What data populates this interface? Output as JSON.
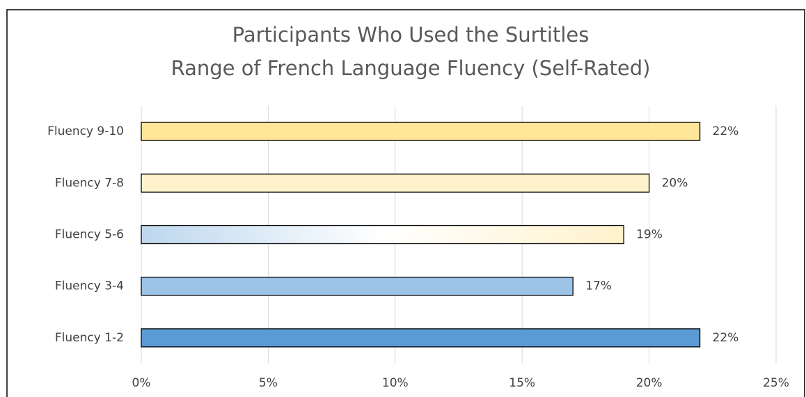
{
  "chart_data": {
    "type": "barh",
    "title": [
      "Participants Who Used the Surtitles",
      "Range of French Language Fluency (Self-Rated)"
    ],
    "categories": [
      "Fluency 9-10",
      "Fluency 7-8",
      "Fluency 5-6",
      "Fluency 3-4",
      "Fluency 1-2"
    ],
    "values": [
      22,
      20,
      19,
      17,
      22
    ],
    "value_labels": [
      "22%",
      "20%",
      "19%",
      "17%",
      "22%"
    ],
    "colors": [
      "#ffe699",
      "#fff2cc",
      [
        "#bdd7ee",
        "#ffffff",
        "#fff2cc"
      ],
      "#9dc3e6",
      "#5b9bd5"
    ],
    "xlim": [
      0,
      25
    ],
    "xticks": [
      {
        "value": 0,
        "label": "0%"
      },
      {
        "value": 5,
        "label": "5%"
      },
      {
        "value": 10,
        "label": "10%"
      },
      {
        "value": 15,
        "label": "15%"
      },
      {
        "value": 20,
        "label": "20%"
      },
      {
        "value": 25,
        "label": "25%"
      }
    ],
    "grid": true
  }
}
